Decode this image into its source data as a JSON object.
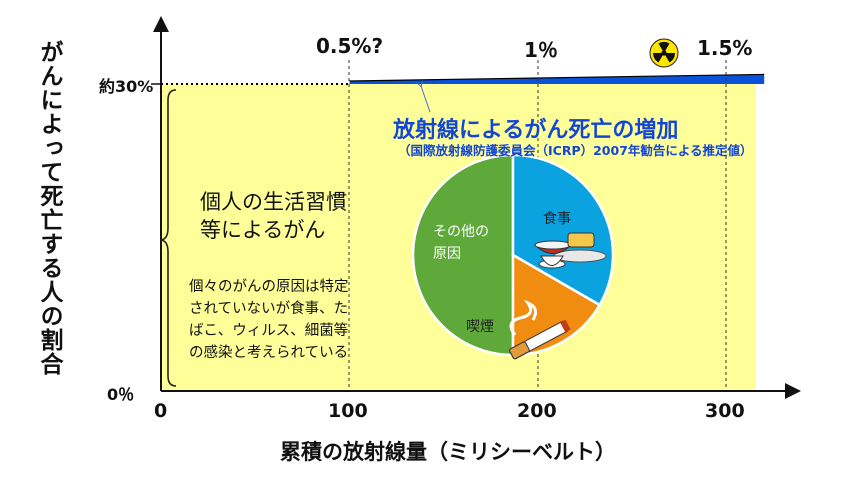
{
  "y_axis_label": "がんによって死亡する人の割合",
  "x_axis_label": "累積の放射線量（ミリシーベルト）",
  "y_ticks": [
    "0％",
    "約30%"
  ],
  "chart_data": {
    "type": "area",
    "title": "",
    "xlabel": "累積の放射線量（ミリシーベルト）",
    "ylabel": "がんによって死亡する人の割合",
    "x_ticks": [
      0,
      100,
      200,
      300
    ],
    "xlim": [
      0,
      320
    ],
    "series": [
      {
        "name": "個人の生活習慣等によるがん",
        "x": [
          0,
          320
        ],
        "y": [
          30,
          30
        ]
      },
      {
        "name": "放射線によるがん死亡の増加",
        "x": [
          100,
          200,
          300,
          320
        ],
        "y": [
          0.5,
          1.0,
          1.5,
          1.6
        ]
      }
    ],
    "increment_labels": [
      {
        "x": 100,
        "label": "0.5%?"
      },
      {
        "x": 200,
        "label": "1％"
      },
      {
        "x": 300,
        "label": "1.5%"
      }
    ]
  },
  "radiation_title": "放射線によるがん死亡の増加",
  "radiation_note": "（国際放射線防護委員会（ICRP）2007年勧告による推定値）",
  "lifestyle_lines": [
    "個人の生活習慣",
    "等によるがん"
  ],
  "explanation_lines": [
    "個々のがんの原因は特定",
    "されていないが食事、た",
    "ばこ、ウィルス、細菌等",
    "の感染と考えられている"
  ],
  "pie": {
    "slices": [
      {
        "label_lines": [
          "その他の",
          "原因"
        ],
        "color": "#5fa83a"
      },
      {
        "label_lines": [
          "食事"
        ],
        "color": "#0aa3e0"
      },
      {
        "label_lines": [
          "喫煙"
        ],
        "color": "#f08d10"
      }
    ]
  },
  "colors": {
    "yellow_fill": "#ffff99",
    "radiation_band": "#0a52d8",
    "axis": "#111111"
  }
}
